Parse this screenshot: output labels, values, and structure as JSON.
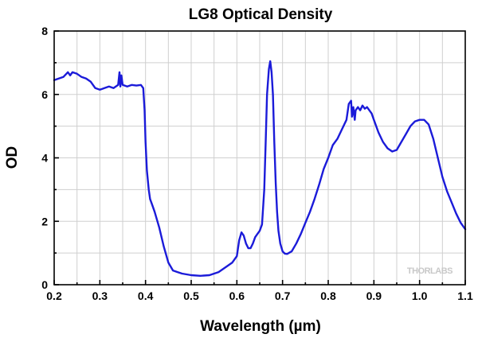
{
  "chart_data": {
    "type": "line",
    "title": "LG8 Optical Density",
    "xlabel": "Wavelength (µm)",
    "ylabel": "OD",
    "xlim": [
      0.2,
      1.1
    ],
    "ylim": [
      0,
      8
    ],
    "xticks": [
      0.2,
      0.3,
      0.4,
      0.5,
      0.6,
      0.7,
      0.8,
      0.9,
      1.0,
      1.1
    ],
    "xtick_labels": [
      "0.2",
      "0.3",
      "0.4",
      "0.5",
      "0.6",
      "0.7",
      "0.8",
      "0.9",
      "1.0",
      "1.1"
    ],
    "yticks": [
      0,
      2,
      4,
      6,
      8
    ],
    "ytick_labels": [
      "0",
      "2",
      "4",
      "6",
      "8"
    ],
    "grid": true,
    "watermark": "THORLABS",
    "series": [
      {
        "name": "LG8 Optical Density",
        "color": "#1b1bd9",
        "x": [
          0.2,
          0.21,
          0.22,
          0.23,
          0.235,
          0.24,
          0.25,
          0.26,
          0.27,
          0.28,
          0.29,
          0.3,
          0.31,
          0.32,
          0.33,
          0.34,
          0.343,
          0.345,
          0.347,
          0.35,
          0.36,
          0.37,
          0.38,
          0.39,
          0.395,
          0.398,
          0.4,
          0.403,
          0.407,
          0.41,
          0.415,
          0.42,
          0.43,
          0.44,
          0.45,
          0.46,
          0.47,
          0.48,
          0.5,
          0.52,
          0.54,
          0.56,
          0.58,
          0.59,
          0.6,
          0.605,
          0.61,
          0.615,
          0.62,
          0.625,
          0.63,
          0.635,
          0.64,
          0.645,
          0.65,
          0.655,
          0.66,
          0.663,
          0.666,
          0.67,
          0.673,
          0.676,
          0.679,
          0.682,
          0.685,
          0.688,
          0.691,
          0.695,
          0.7,
          0.705,
          0.71,
          0.72,
          0.73,
          0.74,
          0.75,
          0.76,
          0.77,
          0.78,
          0.79,
          0.8,
          0.81,
          0.82,
          0.83,
          0.84,
          0.845,
          0.85,
          0.852,
          0.855,
          0.858,
          0.86,
          0.865,
          0.87,
          0.875,
          0.88,
          0.885,
          0.89,
          0.895,
          0.9,
          0.91,
          0.92,
          0.93,
          0.94,
          0.95,
          0.96,
          0.97,
          0.98,
          0.99,
          1.0,
          1.01,
          1.02,
          1.03,
          1.04,
          1.05,
          1.06,
          1.07,
          1.08,
          1.09,
          1.1
        ],
        "y": [
          6.45,
          6.5,
          6.55,
          6.7,
          6.6,
          6.7,
          6.65,
          6.55,
          6.5,
          6.4,
          6.2,
          6.15,
          6.2,
          6.25,
          6.2,
          6.3,
          6.7,
          6.25,
          6.6,
          6.3,
          6.25,
          6.3,
          6.28,
          6.3,
          6.2,
          5.5,
          4.5,
          3.6,
          3.0,
          2.7,
          2.5,
          2.3,
          1.8,
          1.2,
          0.7,
          0.45,
          0.4,
          0.35,
          0.3,
          0.28,
          0.3,
          0.4,
          0.6,
          0.7,
          0.9,
          1.4,
          1.65,
          1.55,
          1.3,
          1.15,
          1.15,
          1.3,
          1.5,
          1.6,
          1.7,
          1.9,
          3.0,
          4.5,
          6.0,
          6.8,
          7.05,
          6.7,
          6.0,
          4.5,
          3.2,
          2.3,
          1.7,
          1.3,
          1.05,
          0.98,
          0.97,
          1.05,
          1.3,
          1.6,
          1.95,
          2.3,
          2.7,
          3.15,
          3.65,
          4.0,
          4.4,
          4.6,
          4.9,
          5.2,
          5.7,
          5.8,
          5.3,
          5.6,
          5.2,
          5.5,
          5.6,
          5.5,
          5.65,
          5.55,
          5.6,
          5.5,
          5.4,
          5.2,
          4.8,
          4.5,
          4.3,
          4.2,
          4.25,
          4.5,
          4.75,
          5.0,
          5.15,
          5.2,
          5.2,
          5.05,
          4.6,
          4.0,
          3.4,
          2.95,
          2.6,
          2.25,
          1.95,
          1.75
        ]
      }
    ]
  }
}
